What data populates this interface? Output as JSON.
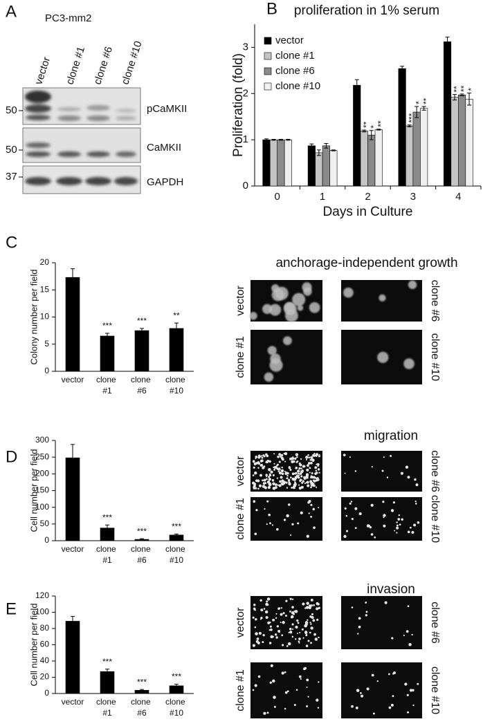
{
  "blot": {
    "panel_label": "A",
    "cell_line": "PC3-mm2",
    "lanes": [
      "vector",
      "clone #1",
      "clone #6",
      "clone #10"
    ],
    "rows": [
      "pCaMKII",
      "CaMKII",
      "GAPDH"
    ],
    "markers": [
      50,
      50,
      37
    ]
  },
  "micrographs": [
    {
      "title": "anchorage-independent growth",
      "labels": [
        "vector",
        "clone #6",
        "clone #1",
        "clone #10"
      ]
    },
    {
      "title": "migration",
      "labels": [
        "vector",
        "clone #6",
        "clone #1",
        "clone #10"
      ]
    },
    {
      "title": "invasion",
      "labels": [
        "vector",
        "clone #6",
        "clone #1",
        "clone #10"
      ]
    }
  ],
  "chart_data": [
    {
      "type": "bar",
      "panel_label": "B",
      "title": "proliferation in 1% serum",
      "x_label": "Days in Culture",
      "y_label": "Proliferation (fold)",
      "categories": [
        "0",
        "1",
        "2",
        "3",
        "4"
      ],
      "ylim": [
        0,
        3.5
      ],
      "yticks": [
        0,
        1,
        2,
        3
      ],
      "legend": "top-left",
      "series": [
        {
          "name": "vector",
          "color": "#000000",
          "values": [
            1.0,
            0.87,
            2.18,
            2.54,
            3.12
          ],
          "errors": [
            0.02,
            0.04,
            0.12,
            0.05,
            0.1
          ],
          "significance": [
            null,
            null,
            null,
            null,
            null
          ]
        },
        {
          "name": "clone #1",
          "color": "#c4c4c4",
          "values": [
            1.0,
            0.72,
            1.19,
            1.3,
            1.92
          ],
          "errors": [
            0.01,
            0.06,
            0.02,
            0.02,
            0.06
          ],
          "significance": [
            null,
            null,
            "**",
            "***",
            "**"
          ]
        },
        {
          "name": "clone #6",
          "color": "#8a8a8a",
          "values": [
            1.0,
            0.87,
            1.1,
            1.6,
            1.97
          ],
          "errors": [
            0.01,
            0.05,
            0.1,
            0.12,
            0.02
          ],
          "significance": [
            null,
            null,
            "*",
            "*",
            "**"
          ]
        },
        {
          "name": "clone #10",
          "color": "#efefef",
          "values": [
            1.0,
            0.77,
            1.22,
            1.68,
            1.88
          ],
          "errors": [
            0.01,
            0.01,
            0.01,
            0.04,
            0.13
          ],
          "significance": [
            null,
            null,
            "**",
            "**",
            "*"
          ]
        }
      ]
    },
    {
      "type": "bar",
      "panel_label": "C",
      "y_label": "Colony number per field",
      "categories": [
        "vector",
        "clone #1",
        "clone #6",
        "clone #10"
      ],
      "ylim": [
        0,
        20
      ],
      "yticks": [
        0,
        5,
        10,
        15,
        20
      ],
      "color": "#000000",
      "values": [
        17.3,
        6.5,
        7.5,
        7.9
      ],
      "errors": [
        1.6,
        0.5,
        0.4,
        1.0
      ],
      "significance": [
        null,
        "***",
        "***",
        "**"
      ]
    },
    {
      "type": "bar",
      "panel_label": "D",
      "y_label": "Cell number per field",
      "categories": [
        "vector",
        "clone #1",
        "clone #6",
        "clone #10"
      ],
      "ylim": [
        0,
        300
      ],
      "yticks": [
        0,
        50,
        100,
        150,
        200,
        250,
        300
      ],
      "color": "#000000",
      "values": [
        248,
        38,
        4,
        17
      ],
      "errors": [
        40,
        9,
        2,
        3
      ],
      "significance": [
        null,
        "***",
        "***",
        "***"
      ]
    },
    {
      "type": "bar",
      "panel_label": "E",
      "y_label": "Cell number per field",
      "categories": [
        "vector",
        "clone #1",
        "clone #6",
        "clone #10"
      ],
      "ylim": [
        0,
        120
      ],
      "yticks": [
        0,
        20,
        40,
        60,
        80,
        100,
        120
      ],
      "color": "#000000",
      "values": [
        89,
        27,
        4,
        9.5
      ],
      "errors": [
        6,
        3,
        1,
        2
      ],
      "significance": [
        null,
        "***",
        "***",
        "***"
      ]
    }
  ]
}
